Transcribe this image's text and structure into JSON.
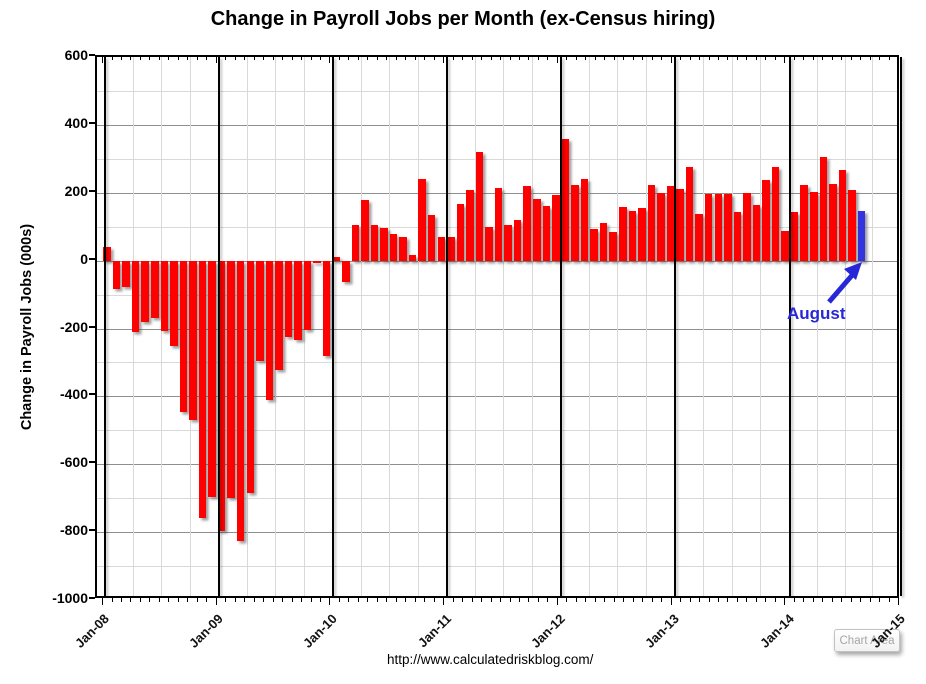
{
  "title": "Change in Payroll Jobs per Month (ex-Census hiring)",
  "source_url": "http://www.calculatedriskblog.com/",
  "annotation": {
    "label": "August"
  },
  "tooltip": {
    "label": "Chart Area"
  },
  "colors": {
    "bar": "#fe0000",
    "highlight_bar": "#3434de",
    "annotation_blue": "#2727d8",
    "major_grid": "#8f8f8f",
    "minor_grid": "#d9d9d9",
    "axis": "#000000",
    "tooltip_text": "#a6a6a6"
  },
  "chart_data": {
    "type": "bar",
    "title": "Change in Payroll Jobs per Month (ex-Census hiring)",
    "xlabel": "",
    "ylabel": "Change in Payroll Jobs (000s)",
    "ylim": [
      -1000,
      600
    ],
    "ytick_step": 200,
    "grid": true,
    "legend_position": "none",
    "ytick_labels": [
      "600",
      "400",
      "200",
      "0",
      "-200",
      "-400",
      "-600",
      "-800",
      "-1000"
    ],
    "xtick_labels": [
      "Jan-08",
      "Jan-09",
      "Jan-10",
      "Jan-11",
      "Jan-12",
      "Jan-13",
      "Jan-14",
      "Jan-15"
    ],
    "highlight_index": 79,
    "highlight_label": "August",
    "x": [
      "Jan-08",
      "Feb-08",
      "Mar-08",
      "Apr-08",
      "May-08",
      "Jun-08",
      "Jul-08",
      "Aug-08",
      "Sep-08",
      "Oct-08",
      "Nov-08",
      "Dec-08",
      "Jan-09",
      "Feb-09",
      "Mar-09",
      "Apr-09",
      "May-09",
      "Jun-09",
      "Jul-09",
      "Aug-09",
      "Sep-09",
      "Oct-09",
      "Nov-09",
      "Dec-09",
      "Jan-10",
      "Feb-10",
      "Mar-10",
      "Apr-10",
      "May-10",
      "Jun-10",
      "Jul-10",
      "Aug-10",
      "Sep-10",
      "Oct-10",
      "Nov-10",
      "Dec-10",
      "Jan-11",
      "Feb-11",
      "Mar-11",
      "Apr-11",
      "May-11",
      "Jun-11",
      "Jul-11",
      "Aug-11",
      "Sep-11",
      "Oct-11",
      "Nov-11",
      "Dec-11",
      "Jan-12",
      "Feb-12",
      "Mar-12",
      "Apr-12",
      "May-12",
      "Jun-12",
      "Jul-12",
      "Aug-12",
      "Sep-12",
      "Oct-12",
      "Nov-12",
      "Dec-12",
      "Jan-13",
      "Feb-13",
      "Mar-13",
      "Apr-13",
      "May-13",
      "Jun-13",
      "Jul-13",
      "Aug-13",
      "Sep-13",
      "Oct-13",
      "Nov-13",
      "Dec-13",
      "Jan-14",
      "Feb-14",
      "Mar-14",
      "Apr-14",
      "May-14",
      "Jun-14",
      "Jul-14",
      "Aug-14"
    ],
    "values": [
      41,
      -84,
      -78,
      -210,
      -182,
      -170,
      -208,
      -252,
      -445,
      -470,
      -760,
      -697,
      -798,
      -701,
      -826,
      -686,
      -296,
      -410,
      -322,
      -225,
      -233,
      -204,
      -8,
      -280,
      12,
      -64,
      105,
      180,
      105,
      96,
      80,
      70,
      16,
      240,
      134,
      71,
      70,
      167,
      208,
      320,
      100,
      215,
      104,
      119,
      220,
      182,
      160,
      193,
      358,
      222,
      240,
      92,
      111,
      85,
      158,
      146,
      156,
      222,
      198,
      219,
      210,
      277,
      137,
      195,
      197,
      195,
      144,
      198,
      164,
      238,
      277,
      88,
      144,
      222,
      201,
      305,
      227,
      266,
      207,
      145
    ]
  }
}
